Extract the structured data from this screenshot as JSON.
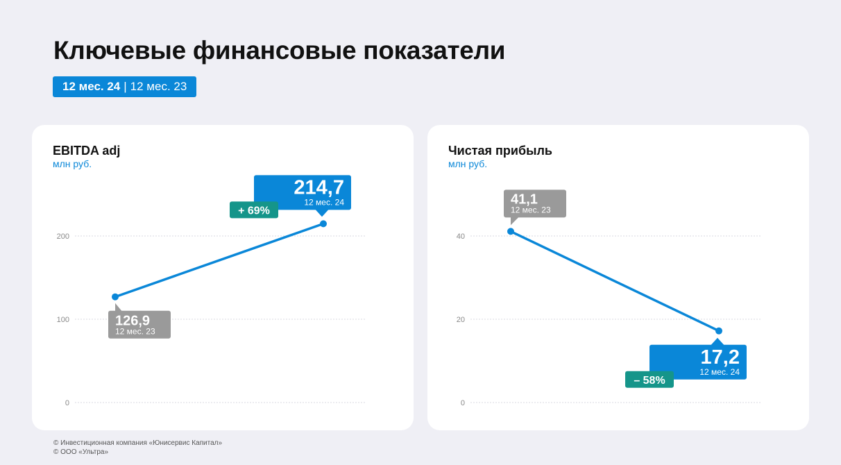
{
  "page": {
    "title": "Ключевые финансовые показатели",
    "period_current": "12 мес. 24",
    "period_separator": "|",
    "period_previous": "12 мес. 23"
  },
  "colors": {
    "accent": "#0a87d8",
    "previous": "#9a9a9a",
    "change": "#15958a",
    "background": "#efeff5",
    "card": "#ffffff"
  },
  "chart_data": [
    {
      "type": "line",
      "title": "EBITDA adj",
      "ylabel": "млн руб.",
      "x": [
        "12 мес. 23",
        "12 мес. 24"
      ],
      "values": [
        126.9,
        214.7
      ],
      "value_labels": [
        "126,9",
        "214,7"
      ],
      "period_labels": [
        "12 мес. 23",
        "12 мес. 24"
      ],
      "change_label": "+ 69%",
      "yticks": [
        0,
        100,
        200
      ],
      "ylim": [
        0,
        200
      ],
      "grid": true
    },
    {
      "type": "line",
      "title": "Чистая прибыль",
      "ylabel": "млн руб.",
      "x": [
        "12 мес. 23",
        "12 мес. 24"
      ],
      "values": [
        41.1,
        17.2
      ],
      "value_labels": [
        "41,1",
        "17,2"
      ],
      "period_labels": [
        "12 мес. 23",
        "12 мес. 24"
      ],
      "change_label": "– 58%",
      "yticks": [
        0,
        20,
        40
      ],
      "ylim": [
        0,
        40
      ],
      "grid": true
    }
  ],
  "footer": {
    "line1": "© Инвестиционная компания «Юнисервис Капитал»",
    "line2": "© ООО «Ультра»"
  }
}
